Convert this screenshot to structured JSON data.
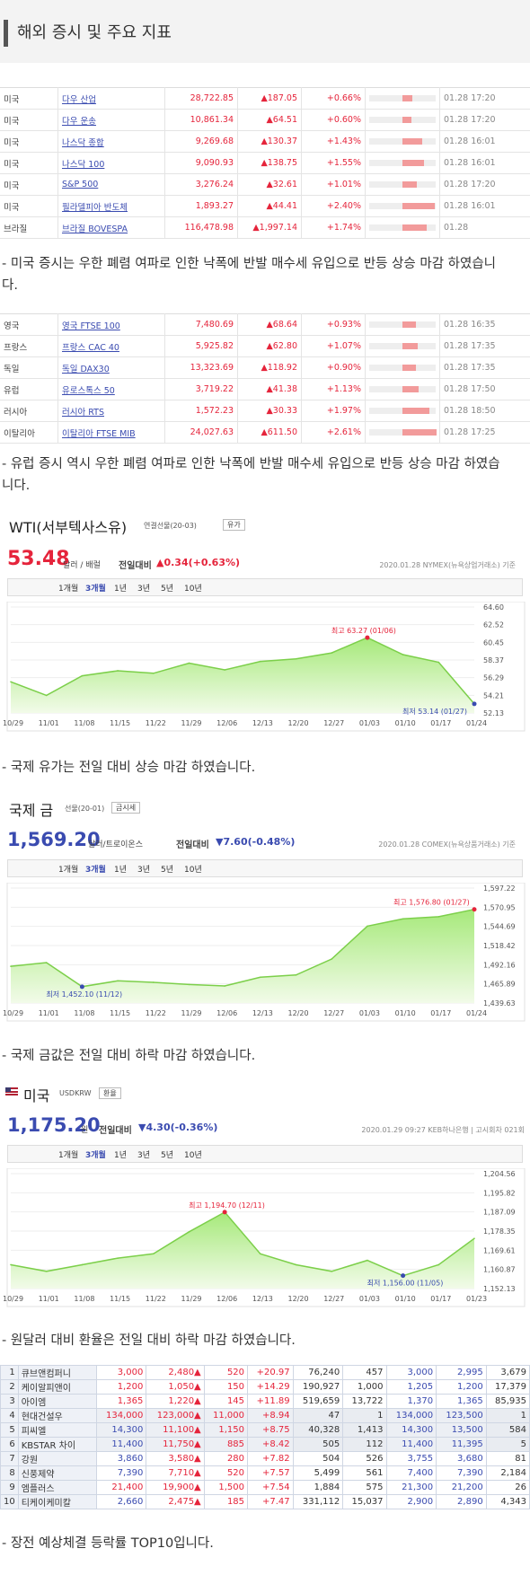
{
  "header": {
    "title": "해외 증시 및 주요 지표"
  },
  "us_table": [
    {
      "country": "미국",
      "name": "다우 산업",
      "price": "28,722.85",
      "change": "▲187.05",
      "pct": "+0.66%",
      "bar": 0.15,
      "time": "01.28 17:20"
    },
    {
      "country": "미국",
      "name": "다우 운송",
      "price": "10,861.34",
      "change": "▲64.51",
      "pct": "+0.60%",
      "bar": 0.14,
      "time": "01.28 17:20"
    },
    {
      "country": "미국",
      "name": "나스닥 종합",
      "price": "9,269.68",
      "change": "▲130.37",
      "pct": "+1.43%",
      "bar": 0.3,
      "time": "01.28 16:01"
    },
    {
      "country": "미국",
      "name": "나스닥 100",
      "price": "9,090.93",
      "change": "▲138.75",
      "pct": "+1.55%",
      "bar": 0.32,
      "time": "01.28 16:01"
    },
    {
      "country": "미국",
      "name": "S&P 500",
      "price": "3,276.24",
      "change": "▲32.61",
      "pct": "+1.01%",
      "bar": 0.22,
      "time": "01.28 17:20"
    },
    {
      "country": "미국",
      "name": "필라델피아 반도체",
      "price": "1,893.27",
      "change": "▲44.41",
      "pct": "+2.40%",
      "bar": 0.48,
      "time": "01.28 16:01"
    },
    {
      "country": "브라질",
      "name": "브라질 BOVESPA",
      "price": "116,478.98",
      "change": "▲1,997.14",
      "pct": "+1.74%",
      "bar": 0.36,
      "time": "01.28"
    }
  ],
  "note1": "- 미국 증시는 우한 폐렴 여파로 인한 낙폭에 반발 매수세 유입으로 반등 상승 마감 하였습니다.",
  "eu_table": [
    {
      "country": "영국",
      "name": "영국 FTSE 100",
      "price": "7,480.69",
      "change": "▲68.64",
      "pct": "+0.93%",
      "bar": 0.2,
      "time": "01.28 16:35"
    },
    {
      "country": "프랑스",
      "name": "프랑스 CAC 40",
      "price": "5,925.82",
      "change": "▲62.80",
      "pct": "+1.07%",
      "bar": 0.23,
      "time": "01.28 17:35"
    },
    {
      "country": "독일",
      "name": "독일 DAX30",
      "price": "13,323.69",
      "change": "▲118.92",
      "pct": "+0.90%",
      "bar": 0.2,
      "time": "01.28 17:35"
    },
    {
      "country": "유럽",
      "name": "유로스톡스 50",
      "price": "3,719.22",
      "change": "▲41.38",
      "pct": "+1.13%",
      "bar": 0.24,
      "time": "01.28 17:50"
    },
    {
      "country": "러시아",
      "name": "러시아 RTS",
      "price": "1,572.23",
      "change": "▲30.33",
      "pct": "+1.97%",
      "bar": 0.4,
      "time": "01.28 18:50"
    },
    {
      "country": "이탈리아",
      "name": "이탈리아 FTSE MIB",
      "price": "24,027.63",
      "change": "▲611.50",
      "pct": "+2.61%",
      "bar": 0.52,
      "time": "01.28 17:25"
    }
  ],
  "note2": "- 유럽 증시 역시 우한 폐렴 여파로 인한 낙폭에 반발 매수세 유입으로 반등 상승 마감 하였습니다.",
  "tabs": [
    "1개월",
    "3개월",
    "1년",
    "3년",
    "5년",
    "10년"
  ],
  "wti": {
    "name": "WTI(서부텍사스유)",
    "sub": "연결선물(20-03)",
    "btn": "유가",
    "price": "53.48",
    "unit": "달러 / 배럴",
    "chg_label": "전일대비",
    "chg": "▲0.34(+0.63%)",
    "src": "2020.01.28 NYMEX(뉴욕상업거래소) 기준"
  },
  "note3": "- 국제 유가는 전일 대비 상승 마감 하였습니다.",
  "gold": {
    "name": "국제 금",
    "sub": "선물(20-01)",
    "btn": "금시세",
    "price": "1,569.20",
    "unit": "달러/트로이온스",
    "chg_label": "전일대비",
    "chg": "▼7.60(-0.48%)",
    "src": "2020.01.28 COMEX(뉴욕상품거래소) 기준"
  },
  "note4": "- 국제 금값은 전일 대비 하락 마감 하였습니다.",
  "usd": {
    "name": "미국",
    "sub": "USDKRW",
    "btn": "환율",
    "price": "1,175.20",
    "unit": "원",
    "chg_label": "전일대비",
    "chg": "▼4.30(-0.36%)",
    "src": "2020.01.29 09:27 KEB하나은행 | 고시회차 021회"
  },
  "note5": "- 원달러 대비 환율은 전일 대비 하락 마감 하였습니다.",
  "chart_data": [
    {
      "type": "line",
      "title": "WTI(서부텍사스유)",
      "x": [
        "10/29",
        "11/01",
        "11/08",
        "11/15",
        "11/22",
        "11/29",
        "12/06",
        "12/13",
        "12/20",
        "12/27",
        "01/03",
        "01/10",
        "01/17",
        "01/24"
      ],
      "y": [
        55.8,
        54.2,
        56.5,
        57.1,
        56.8,
        58.0,
        57.2,
        58.2,
        58.5,
        59.2,
        61.0,
        59.0,
        58.1,
        53.2
      ],
      "yticks": [
        "64.60",
        "62.52",
        "60.45",
        "58.37",
        "56.29",
        "54.21",
        "52.13"
      ],
      "ylim": [
        52.13,
        64.6
      ],
      "annot_high": "최고 63.27 (01/06)",
      "annot_low": "최저 53.14 (01/27)"
    },
    {
      "type": "line",
      "title": "국제 금",
      "x": [
        "10/29",
        "11/01",
        "11/08",
        "11/15",
        "11/22",
        "11/29",
        "12/06",
        "12/13",
        "12/20",
        "12/27",
        "01/03",
        "01/10",
        "01/17",
        "01/24"
      ],
      "y": [
        1490,
        1495,
        1462,
        1470,
        1468,
        1465,
        1463,
        1475,
        1478,
        1500,
        1545,
        1555,
        1558,
        1568
      ],
      "yticks": [
        "1,597.22",
        "1,570.95",
        "1,544.69",
        "1,518.42",
        "1,492.16",
        "1,465.89",
        "1,439.63"
      ],
      "ylim": [
        1439.63,
        1597.22
      ],
      "annot_high": "최고 1,576.80 (01/27)",
      "annot_low": "최저 1,452.10 (11/12)"
    },
    {
      "type": "line",
      "title": "미국 USDKRW",
      "x": [
        "10/29",
        "11/01",
        "11/08",
        "11/15",
        "11/22",
        "11/29",
        "12/06",
        "12/13",
        "12/20",
        "12/27",
        "01/03",
        "01/10",
        "01/17",
        "01/23"
      ],
      "y": [
        1163,
        1160,
        1163,
        1166,
        1168,
        1178,
        1187,
        1168,
        1163,
        1160,
        1165,
        1158,
        1163,
        1175
      ],
      "yticks": [
        "1,204.56",
        "1,195.82",
        "1,187.09",
        "1,178.35",
        "1,169.61",
        "1,160.87",
        "1,152.13"
      ],
      "ylim": [
        1152.13,
        1204.56
      ],
      "annot_high": "최고 1,194.70 (12/11)",
      "annot_low": "최저 1,156.00 (11/05)"
    }
  ],
  "ipo_table": [
    [
      "1",
      "큐브앤컴퍼니",
      "3,000",
      "2,480▲",
      "520",
      "+20.97",
      "76,240",
      "457",
      "3,000",
      "2,995",
      "3,679"
    ],
    [
      "2",
      "케이알피앤이",
      "1,200",
      "1,050▲",
      "150",
      "+14.29",
      "190,927",
      "1,000",
      "1,205",
      "1,200",
      "17,379"
    ],
    [
      "3",
      "아이엠",
      "1,365",
      "1,220▲",
      "145",
      "+11.89",
      "519,659",
      "13,722",
      "1,370",
      "1,365",
      "85,935"
    ],
    [
      "4",
      "현대건설우",
      "134,000",
      "123,000▲",
      "11,000",
      "+8.94",
      "47",
      "1",
      "134,000",
      "123,500",
      "1"
    ],
    [
      "5",
      "피씨엘",
      "14,300",
      "11,100▲",
      "1,150",
      "+8.75",
      "40,328",
      "1,413",
      "14,300",
      "13,500",
      "584"
    ],
    [
      "6",
      "KBSTAR 차이",
      "11,400",
      "11,750▲",
      "885",
      "+8.42",
      "505",
      "112",
      "11,400",
      "11,395",
      "5"
    ],
    [
      "7",
      "강원",
      "3,860",
      "3,580▲",
      "280",
      "+7.82",
      "504",
      "526",
      "3,755",
      "3,680",
      "81"
    ],
    [
      "8",
      "신풍제약",
      "7,390",
      "7,710▲",
      "520",
      "+7.57",
      "5,499",
      "561",
      "7,400",
      "7,390",
      "2,184"
    ],
    [
      "9",
      "엠플러스",
      "21,400",
      "19,900▲",
      "1,500",
      "+7.54",
      "1,884",
      "575",
      "21,300",
      "21,200",
      "26"
    ],
    [
      "10",
      "티케이케미칼",
      "2,660",
      "2,475▲",
      "185",
      "+7.47",
      "331,112",
      "15,037",
      "2,900",
      "2,890",
      "4,343"
    ]
  ],
  "note6": "- 장전 예상체결 등락률 TOP10입니다."
}
